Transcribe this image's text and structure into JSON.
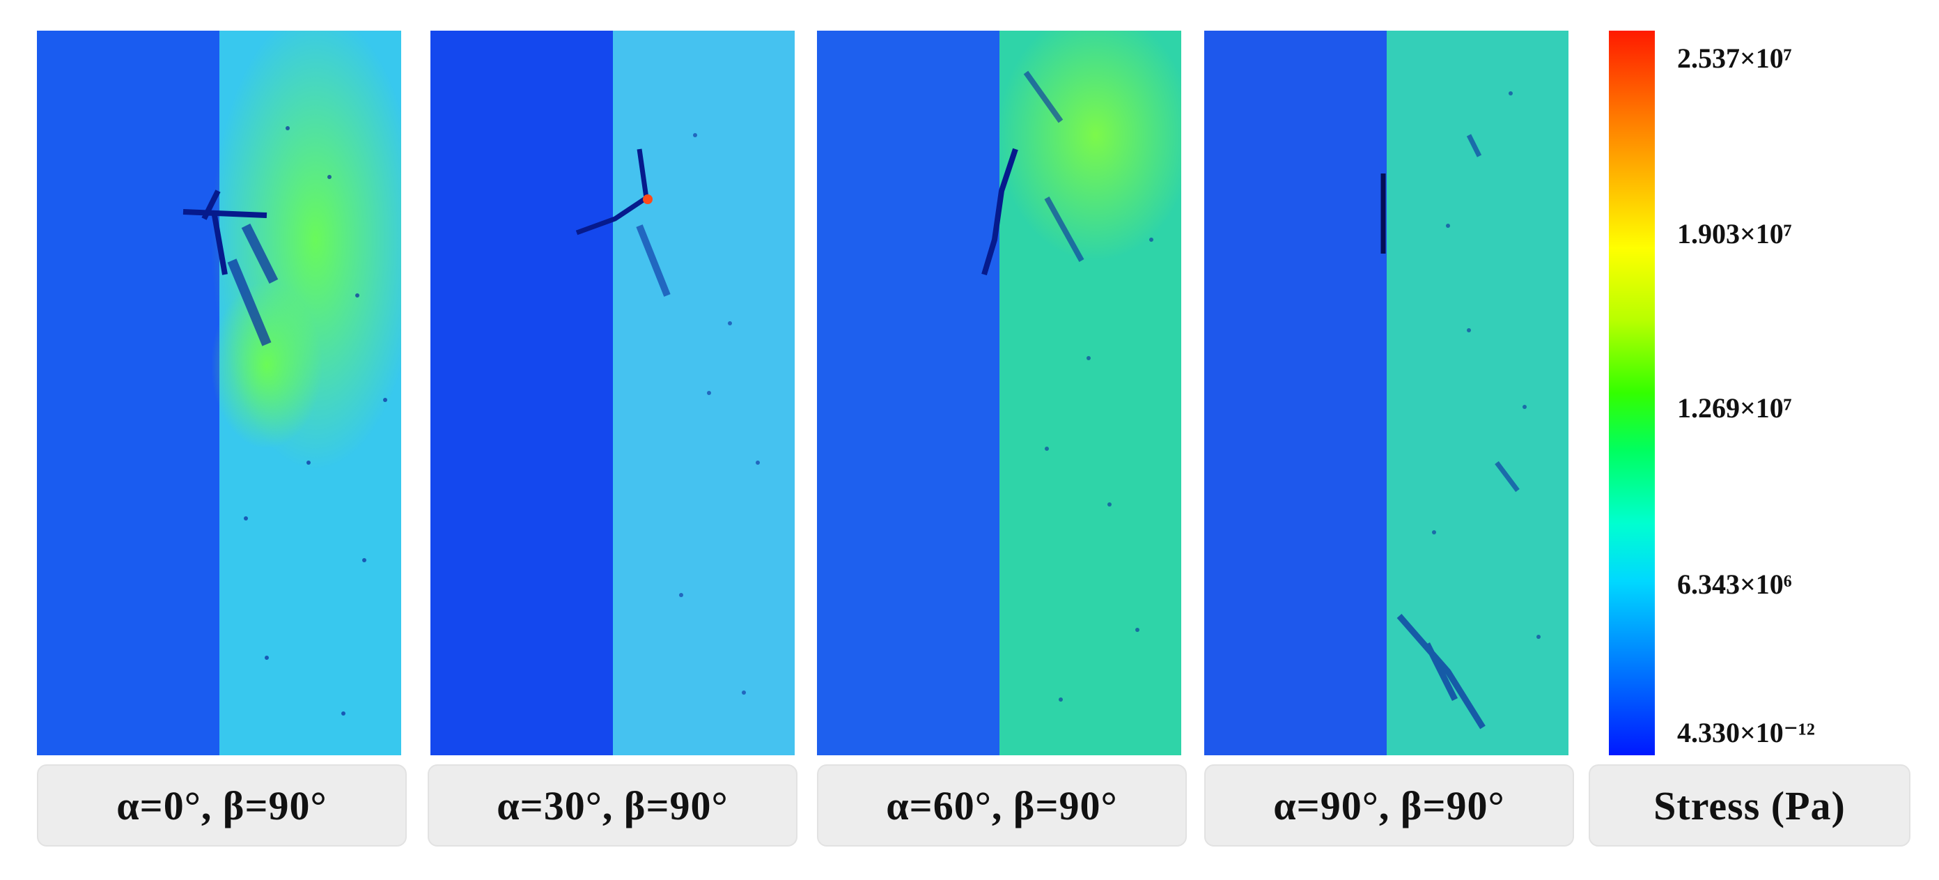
{
  "panels": [
    {
      "caption": "α=0°,  β=90°",
      "left_color": "#1a5cf0",
      "right_color": "#38c8ee",
      "feature": "crack-x"
    },
    {
      "caption": "α=30°,  β=90°",
      "left_color": "#1448ee",
      "right_color": "#45c2f0",
      "feature": "crack-zigzag"
    },
    {
      "caption": "α=60°,  β=90°",
      "left_color": "#1e60ee",
      "right_color": "#2fd4a8",
      "feature": "crack-diagonal"
    },
    {
      "caption": "α=90°,  β=90°",
      "left_color": "#1e58ec",
      "right_color": "#34cfb8",
      "feature": "crack-vertical"
    }
  ],
  "colorbar": {
    "title": "Stress (Pa)",
    "ticks": [
      "2.537×10⁷",
      "1.903×10⁷",
      "1.269×10⁷",
      "6.343×10⁶",
      "4.330×10⁻¹²"
    ]
  }
}
